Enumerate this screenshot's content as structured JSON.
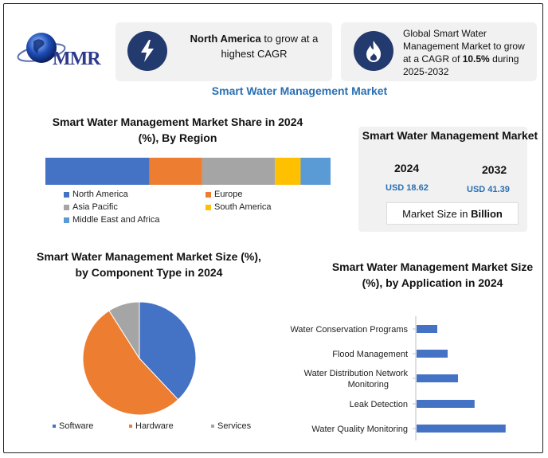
{
  "logo": {
    "text": "MMR"
  },
  "cards": [
    {
      "icon": "bolt-icon",
      "strong": "North America",
      "text": " to grow at a highest CAGR"
    },
    {
      "icon": "flame-icon",
      "text_before": "Global Smart Water Management Market to grow at a CAGR of ",
      "strong": "10.5%",
      "text_after": " during 2025-2032"
    }
  ],
  "main_title": "Smart Water Management Market",
  "market_size": {
    "title": "Smart Water Management Market",
    "years": [
      "2024",
      "2032"
    ],
    "values": [
      "USD 18.62",
      "USD 41.39"
    ],
    "unit_prefix": "Market Size in ",
    "unit_strong": "Billion"
  },
  "colors": {
    "north_america": "#4472c4",
    "europe": "#ed7d31",
    "asia_pacific": "#a5a5a5",
    "south_america": "#ffc000",
    "mea": "#5b9bd5",
    "accent": "#2a6fb3"
  },
  "chart_data": [
    {
      "type": "bar",
      "title": "Smart Water Management Market Share in 2024 (%), By Region",
      "orientation": "stacked-horizontal",
      "categories": [
        "North America",
        "Europe",
        "Asia Pacific",
        "South America",
        "Middle East and Africa"
      ],
      "values": [
        36.5,
        18.5,
        25.5,
        9,
        10.5
      ],
      "legend": [
        "North America",
        "Europe",
        "Asia Pacific",
        "South America",
        "Middle East and Africa"
      ],
      "legend_position": "bottom"
    },
    {
      "type": "pie",
      "title": "Smart Water Management  Market Size (%), by Component Type in 2024",
      "categories": [
        "Software",
        "Hardware",
        "Services"
      ],
      "values": [
        38,
        53,
        9
      ],
      "legend_position": "bottom"
    },
    {
      "type": "bar",
      "title": "Smart Water Management Market Size (%), by Application in 2024",
      "orientation": "horizontal",
      "categories": [
        "Water Conservation Programs",
        "Flood Management",
        "Water Distribution Network Monitoring",
        "Leak Detection",
        "Water Quality Monitoring"
      ],
      "values": [
        10,
        15,
        20,
        28,
        43
      ]
    }
  ]
}
